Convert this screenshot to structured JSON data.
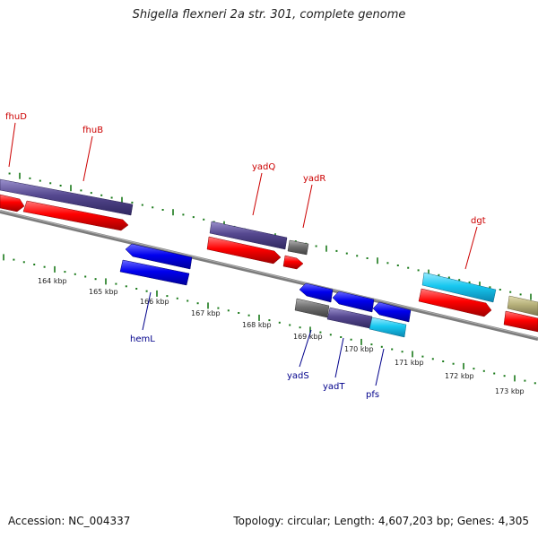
{
  "title": "Shigella flexneri 2a str. 301, complete genome",
  "footer": {
    "accession": "Accession: NC_004337",
    "summary": "Topology: circular; Length: 4,607,203 bp; Genes: 4,305"
  },
  "colors": {
    "forward_label": "#cc0000",
    "reverse_label": "#00008b",
    "backbone": "#808080",
    "ticks": "#1a7a1a",
    "red_gene": "#ff0000",
    "blue_gene": "#0000ee",
    "purple_gene": "#55488f",
    "gray_gene": "#707070",
    "cyan_gene": "#18c8f0",
    "olive_gene": "#b6b07a"
  },
  "ruler_labels": [
    "164 kbp",
    "165 kbp",
    "166 kbp",
    "167 kbp",
    "168 kbp",
    "169 kbp",
    "170 kbp",
    "171 kbp",
    "172 kbp",
    "173 kbp"
  ],
  "gene_labels": {
    "forward": [
      "fhuD",
      "fhuB",
      "yadQ",
      "yadR",
      "dgt"
    ],
    "reverse": [
      "hemL",
      "yadS",
      "yadT",
      "pfs"
    ]
  }
}
